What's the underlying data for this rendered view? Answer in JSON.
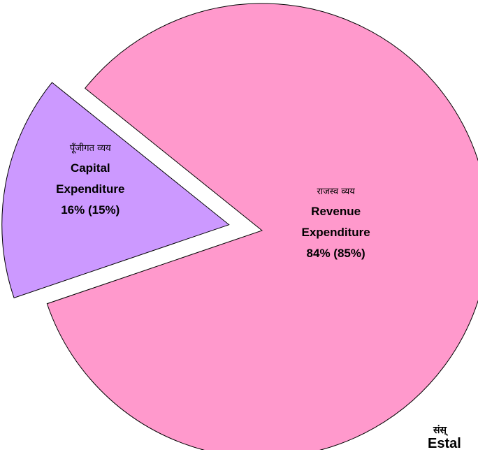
{
  "chart_data": {
    "type": "pie",
    "categories": [
      "Revenue Expenditure",
      "Capital Expenditure"
    ],
    "local_labels": [
      "राजस्व व्यय",
      "पूँजीगत व्यय"
    ],
    "values": [
      84,
      16
    ],
    "value_labels": [
      "84% (85%)",
      "16% (15%)"
    ],
    "colors": [
      "#ff99cc",
      "#cc99ff"
    ],
    "exploded": [
      false,
      true
    ],
    "annotations": [
      "संस्",
      "Estal"
    ]
  }
}
